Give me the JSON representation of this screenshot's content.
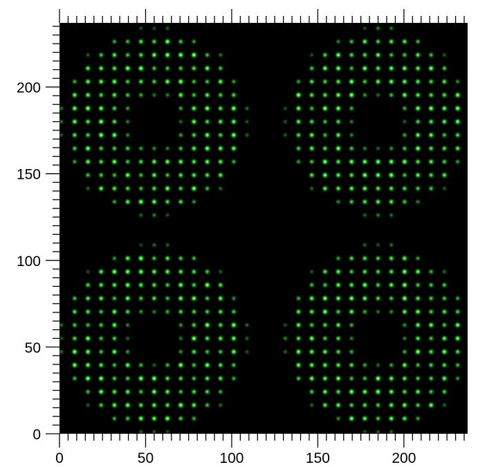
{
  "chart_data": {
    "type": "heatmap",
    "title": "",
    "xlabel": "",
    "ylabel": "",
    "xlim": [
      0,
      237
    ],
    "ylim": [
      0,
      237
    ],
    "x_ticks": [
      {
        "value": 0,
        "label": "0"
      },
      {
        "value": 50,
        "label": "50"
      },
      {
        "value": 100,
        "label": "100"
      },
      {
        "value": 150,
        "label": "150"
      },
      {
        "value": 200,
        "label": "200"
      }
    ],
    "y_ticks": [
      {
        "value": 0,
        "label": "0"
      },
      {
        "value": 50,
        "label": "50"
      },
      {
        "value": 100,
        "label": "100"
      },
      {
        "value": 150,
        "label": "150"
      },
      {
        "value": 200,
        "label": "200"
      }
    ],
    "minor_tick_step": 5,
    "grid": false,
    "background_color": "#000000",
    "spot_color": "#33ff33",
    "spot_pitch": 7.7,
    "patterns": [
      {
        "center_x": 55,
        "center_y": 180,
        "outer_radius": 55,
        "inner_radius": 14
      },
      {
        "center_x": 185,
        "center_y": 180,
        "outer_radius": 55,
        "inner_radius": 14
      },
      {
        "center_x": 55,
        "center_y": 55,
        "outer_radius": 55,
        "inner_radius": 14
      },
      {
        "center_x": 185,
        "center_y": 55,
        "outer_radius": 55,
        "inner_radius": 14
      }
    ]
  }
}
